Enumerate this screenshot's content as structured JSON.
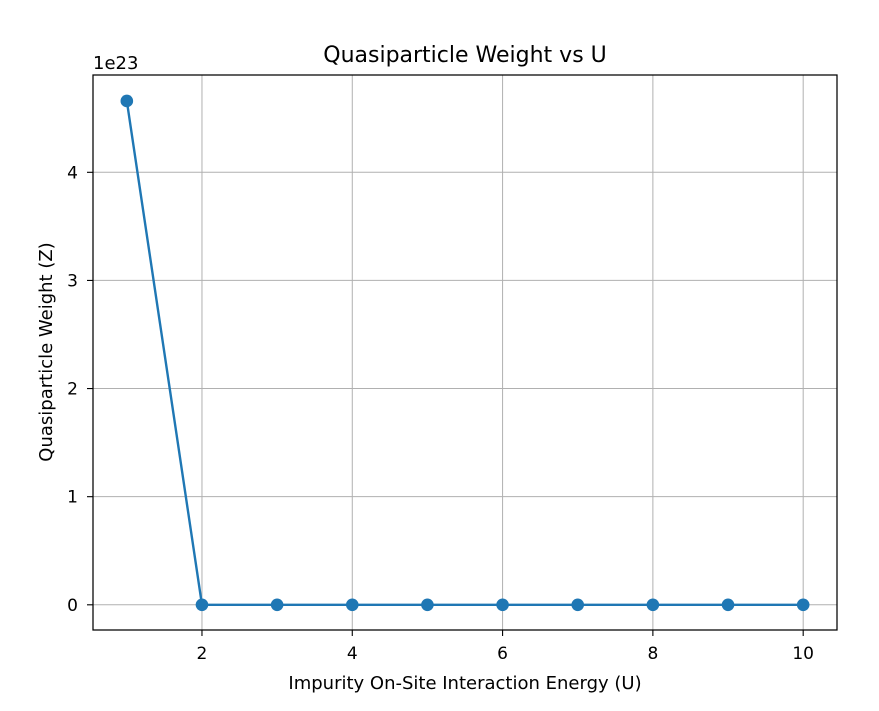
{
  "chart_data": {
    "type": "line",
    "title": "Quasiparticle Weight vs U",
    "xlabel": "Impurity On-Site Interaction Energy (U)",
    "ylabel": "Quasiparticle Weight (Z)",
    "y_offset_label": "1e23",
    "y_scale_factor": 1e+23,
    "xlim": [
      0.55,
      10.45
    ],
    "ylim": [
      -0.233,
      4.9
    ],
    "x_ticks": [
      2,
      4,
      6,
      8,
      10
    ],
    "x_tick_labels": [
      "2",
      "4",
      "6",
      "8",
      "10"
    ],
    "y_ticks": [
      0,
      1,
      2,
      3,
      4
    ],
    "y_tick_labels": [
      "0",
      "1",
      "2",
      "3",
      "4"
    ],
    "grid": true,
    "legend": "none",
    "series": [
      {
        "color": "#1f77b4",
        "marker": "circle",
        "x": [
          1,
          2,
          3,
          4,
          5,
          6,
          7,
          8,
          9,
          10
        ],
        "y": [
          4.66,
          0,
          0,
          0,
          0,
          0,
          0,
          0,
          0,
          0
        ]
      }
    ]
  }
}
